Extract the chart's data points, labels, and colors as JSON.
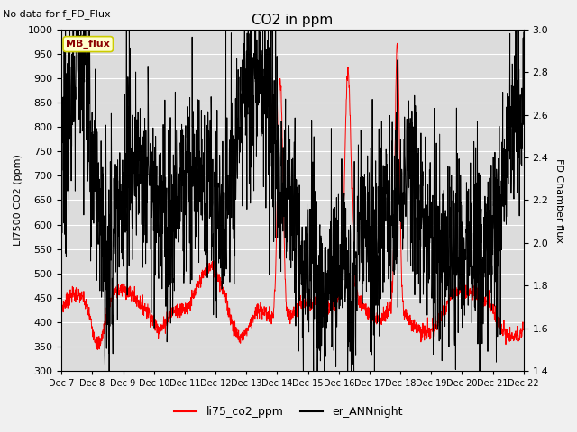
{
  "title": "CO2 in ppm",
  "top_left_text": "No data for f_FD_Flux",
  "legend_box_text": "MB_flux",
  "ylabel_left": "LI7500 CO2 (ppm)",
  "ylabel_right": "FD Chamber flux",
  "ylim_left": [
    300,
    1000
  ],
  "ylim_right": [
    1.4,
    3.0
  ],
  "x_tick_labels": [
    "Dec 7",
    "Dec 8",
    "Dec 9",
    "Dec 10",
    "Dec 11",
    "Dec 12",
    "Dec 13",
    "Dec 14",
    "Dec 15",
    "Dec 16",
    "Dec 17",
    "Dec 18",
    "Dec 19",
    "Dec 20",
    "Dec 21",
    "Dec 22"
  ],
  "line1_color": "#FF0000",
  "line2_color": "#000000",
  "legend_label1": "li75_co2_ppm",
  "legend_label2": "er_ANNnight",
  "bg_color": "#F0F0F0",
  "plot_bg_color": "#DCDCDC",
  "yticks_left": [
    300,
    350,
    400,
    450,
    500,
    550,
    600,
    650,
    700,
    750,
    800,
    850,
    900,
    950,
    1000
  ],
  "yticks_right": [
    1.4,
    1.6,
    1.8,
    2.0,
    2.2,
    2.4,
    2.6,
    2.8,
    3.0
  ]
}
